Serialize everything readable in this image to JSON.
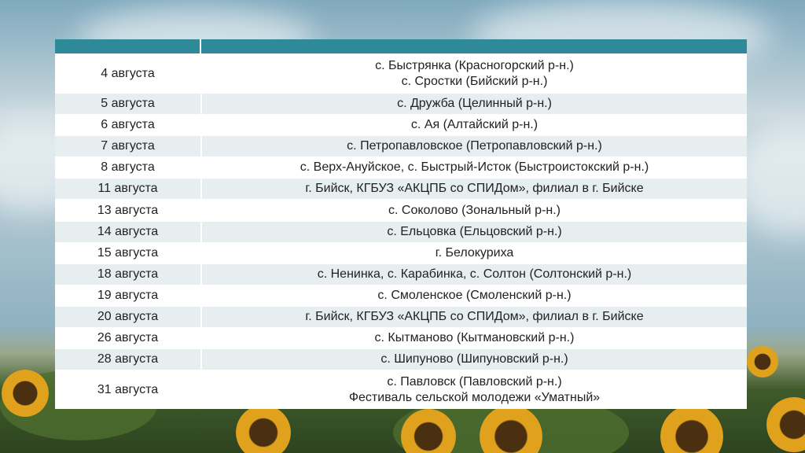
{
  "table": {
    "rows": [
      {
        "date": "4 августа",
        "place": [
          "с. Быстрянка (Красногорский р-н.)",
          "с. Сростки (Бийский р-н.)"
        ]
      },
      {
        "date": "5 августа",
        "place": [
          "с. Дружба (Целинный р-н.)"
        ]
      },
      {
        "date": "6 августа",
        "place": [
          "с. Ая (Алтайский р-н.)"
        ]
      },
      {
        "date": "7 августа",
        "place": [
          "с. Петропавловское (Петропавловский р-н.)"
        ]
      },
      {
        "date": "8 августа",
        "place": [
          "с. Верх-Ануйское, с. Быстрый-Исток (Быстроистокский р-н.)"
        ]
      },
      {
        "date": "11 августа",
        "place": [
          "г. Бийск, КГБУЗ «АКЦПБ со СПИДом», филиал в г. Бийске"
        ]
      },
      {
        "date": "13 августа",
        "place": [
          "с. Соколово (Зональный р-н.)"
        ]
      },
      {
        "date": "14 августа",
        "place": [
          "с. Ельцовка (Ельцовский р-н.)"
        ]
      },
      {
        "date": "15 августа",
        "place": [
          "г. Белокуриха"
        ]
      },
      {
        "date": "18 августа",
        "place": [
          "с. Ненинка, с. Карабинка, с. Солтон (Солтонский р-н.)"
        ]
      },
      {
        "date": "19 августа",
        "place": [
          "с. Смоленское (Смоленский р-н.)"
        ]
      },
      {
        "date": "20 августа",
        "place": [
          "г. Бийск, КГБУЗ «АКЦПБ со СПИДом», филиал в г. Бийске"
        ]
      },
      {
        "date": "26 августа",
        "place": [
          "с. Кытманово (Кытмановский р-н.)"
        ]
      },
      {
        "date": "28 августа",
        "place": [
          "с. Шипуново (Шипуновский р-н.)"
        ]
      },
      {
        "date": "31 августа",
        "place": [
          "с. Павловск (Павловский р-н.)",
          "Фестиваль сельской молодежи «Уматный»"
        ]
      }
    ]
  }
}
